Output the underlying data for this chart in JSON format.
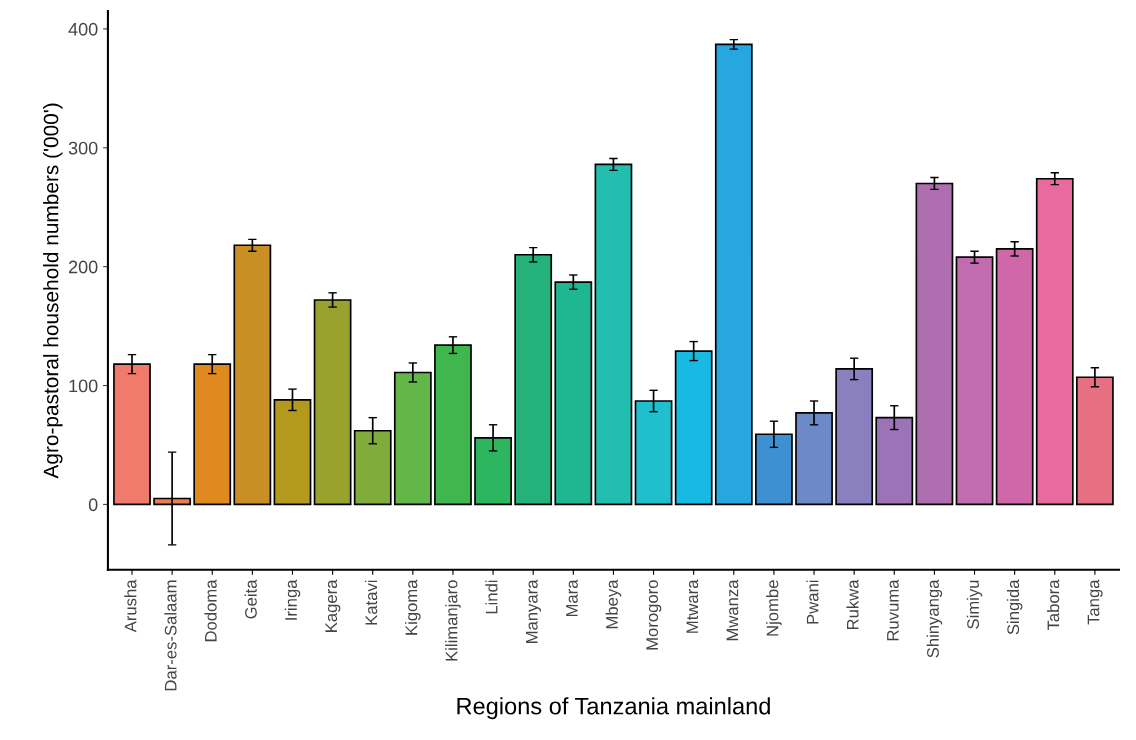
{
  "chart_data": {
    "type": "bar",
    "xlabel": "Regions of Tanzania mainland",
    "ylabel": "Agro-pastoral household numbers ('000')",
    "categories": [
      "Arusha",
      "Dar-es-Salaam",
      "Dodoma",
      "Geita",
      "Iringa",
      "Kagera",
      "Katavi",
      "Kigoma",
      "Kilimanjaro",
      "Lindi",
      "Manyara",
      "Mara",
      "Mbeya",
      "Morogoro",
      "Mtwara",
      "Mwanza",
      "Njombe",
      "Pwani",
      "Rukwa",
      "Ruvuma",
      "Shinyanga",
      "Simiyu",
      "Singida",
      "Tabora",
      "Tanga"
    ],
    "values": [
      118,
      5,
      118,
      218,
      88,
      172,
      62,
      111,
      134,
      56,
      210,
      187,
      286,
      87,
      129,
      387,
      59,
      77,
      114,
      73,
      270,
      208,
      215,
      274,
      107
    ],
    "errors": [
      8,
      39,
      8,
      5,
      9,
      6,
      11,
      8,
      7,
      11,
      6,
      6,
      5,
      9,
      8,
      4,
      11,
      10,
      9,
      10,
      5,
      5,
      6,
      5,
      8
    ],
    "colors": [
      "#f07a6c",
      "#ea7f48",
      "#e0891e",
      "#c98f24",
      "#b39a1c",
      "#9aa22e",
      "#80ac3c",
      "#63b648",
      "#40b64e",
      "#2cb660",
      "#24b27a",
      "#1fb692",
      "#22bfb0",
      "#20bfce",
      "#18b9e2",
      "#27a7df",
      "#3d90d2",
      "#6c89c8",
      "#8a7fbf",
      "#9c73b7",
      "#ae6eaf",
      "#c06cae",
      "#d067a8",
      "#e96a9e",
      "#e76f82"
    ],
    "ylim": [
      -55,
      415
    ],
    "yticks": [
      0,
      100,
      200,
      300,
      400
    ],
    "grid": false,
    "legend": false
  }
}
